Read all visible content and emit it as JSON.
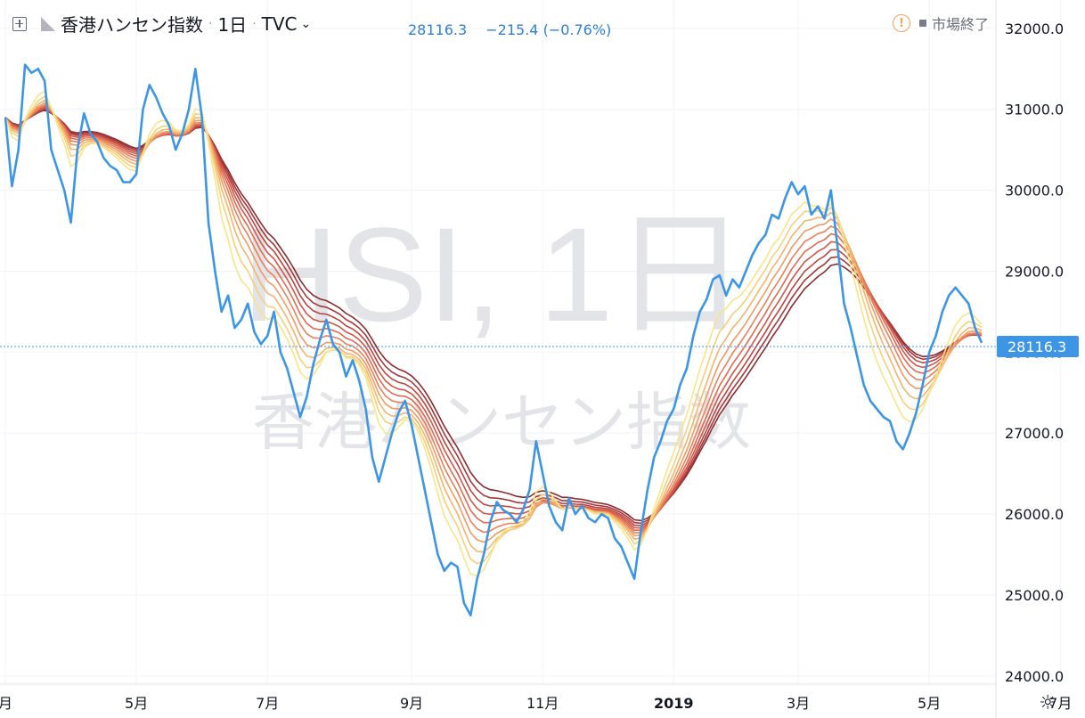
{
  "header": {
    "title": "香港ハンセン指数",
    "interval": "1日",
    "exchange": "TVC",
    "last": "28116.3",
    "change": "−215.4 (−0.76%)",
    "status": "市場終了"
  },
  "watermark": {
    "symbol": "HSI, 1日",
    "name": "香港ハンセン指数"
  },
  "colors": {
    "price": "#3d95e6",
    "last_label_bg": "#3d95e6",
    "ribbon": [
      "#f7e58a",
      "#f6cf7a",
      "#f3b46c",
      "#ef9a62",
      "#e8805a",
      "#de6a50",
      "#cf5648",
      "#bb4540",
      "#a5383a",
      "#8b2c2e"
    ]
  },
  "chart_data": {
    "type": "line",
    "title": "香港ハンセン指数",
    "ylim": [
      23900,
      32350
    ],
    "y_ticks": [
      "24000.0",
      "25000.0",
      "26000.0",
      "27000.0",
      "28000.0",
      "29000.0",
      "30000.0",
      "31000.0",
      "32000.0"
    ],
    "x_ticks": [
      {
        "label": "月",
        "i": 0
      },
      {
        "label": "5月",
        "i": 20
      },
      {
        "label": "7月",
        "i": 40
      },
      {
        "label": "9月",
        "i": 62
      },
      {
        "label": "11月",
        "i": 82
      },
      {
        "label": "2019",
        "i": 102
      },
      {
        "label": "3月",
        "i": 121
      },
      {
        "label": "5月",
        "i": 141
      },
      {
        "label": "7月",
        "i": 161
      }
    ],
    "last_value": "28116.3",
    "grid": true,
    "series": [
      {
        "role": "price",
        "values": [
          30900,
          30050,
          30500,
          31550,
          31450,
          31500,
          31350,
          30500,
          30250,
          30000,
          29600,
          30500,
          30950,
          30700,
          30600,
          30400,
          30300,
          30250,
          30100,
          30100,
          30200,
          31000,
          31300,
          31150,
          30950,
          30800,
          30500,
          30700,
          31000,
          31500,
          30900,
          29600,
          29000,
          28500,
          28700,
          28300,
          28400,
          28600,
          28250,
          28100,
          28200,
          28500,
          28000,
          27800,
          27500,
          27200,
          27450,
          27850,
          28150,
          28400,
          28100,
          28000,
          27700,
          27900,
          27650,
          27300,
          26700,
          26400,
          26700,
          27000,
          27250,
          27400,
          27100,
          26700,
          26300,
          25900,
          25500,
          25300,
          25400,
          25350,
          24900,
          24750,
          25200,
          25500,
          25900,
          26150,
          26050,
          26000,
          25900,
          26050,
          26300,
          26900,
          26500,
          26100,
          25900,
          25800,
          26200,
          26000,
          26100,
          25950,
          25900,
          26000,
          25950,
          25700,
          25600,
          25400,
          25200,
          25800,
          26300,
          26700,
          26900,
          27150,
          27300,
          27600,
          27800,
          28200,
          28500,
          28650,
          28900,
          28950,
          28700,
          28900,
          28800,
          29000,
          29200,
          29350,
          29450,
          29700,
          29650,
          29900,
          30100,
          29950,
          30050,
          29700,
          29800,
          29650,
          30000,
          29300,
          28600,
          28300,
          27950,
          27600,
          27400,
          27300,
          27200,
          27150,
          26900,
          26800,
          27000,
          27250,
          27600,
          28000,
          28200,
          28500,
          28700,
          28800,
          28700,
          28600,
          28300,
          28116
        ]
      }
    ]
  }
}
